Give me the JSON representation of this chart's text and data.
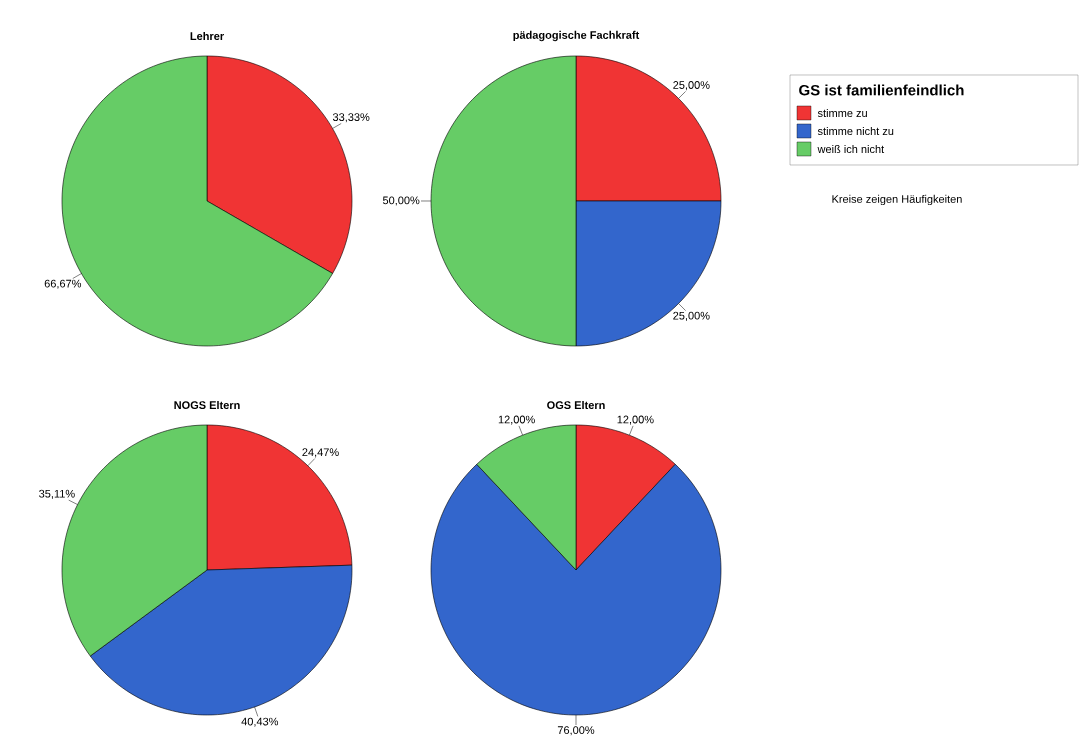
{
  "chart_data": [
    {
      "type": "pie",
      "title": "Lehrer",
      "categories": [
        null,
        null
      ],
      "values": [
        33.33,
        66.67
      ],
      "colors": [
        "#f03434",
        "#66cc66"
      ],
      "value_labels": [
        "33,33%",
        "66,67%"
      ]
    },
    {
      "type": "pie",
      "title": "pädagogische Fachkraft",
      "categories": [
        "stimme zu",
        "stimme nicht zu",
        "weiß ich nicht"
      ],
      "values": [
        25,
        25,
        50
      ],
      "colors": [
        "#f03434",
        "#3366cc",
        "#66cc66"
      ],
      "value_labels": [
        "25,00%",
        "25,00%",
        "50,00%"
      ],
      "legend": "right",
      "legend_title": "GS ist familienfeindlich",
      "annotations": [
        "Kreise zeigen Häufigkeiten"
      ]
    },
    {
      "type": "pie",
      "title": "NOGS Eltern",
      "categories": [
        null,
        null,
        null
      ],
      "values": [
        24.47,
        40.43,
        35.11
      ],
      "colors": [
        "#f03434",
        "#3366cc",
        "#66cc66"
      ],
      "value_labels": [
        "24,47%",
        "40,43%",
        "35,11%"
      ]
    },
    {
      "type": "pie",
      "title": "OGS Eltern",
      "categories": [
        null,
        null,
        null
      ],
      "values": [
        12,
        76,
        12
      ],
      "colors": [
        "#f03434",
        "#3366cc",
        "#66cc66"
      ],
      "value_labels": [
        "12,00%",
        "76,00%",
        "12,00%"
      ]
    }
  ]
}
